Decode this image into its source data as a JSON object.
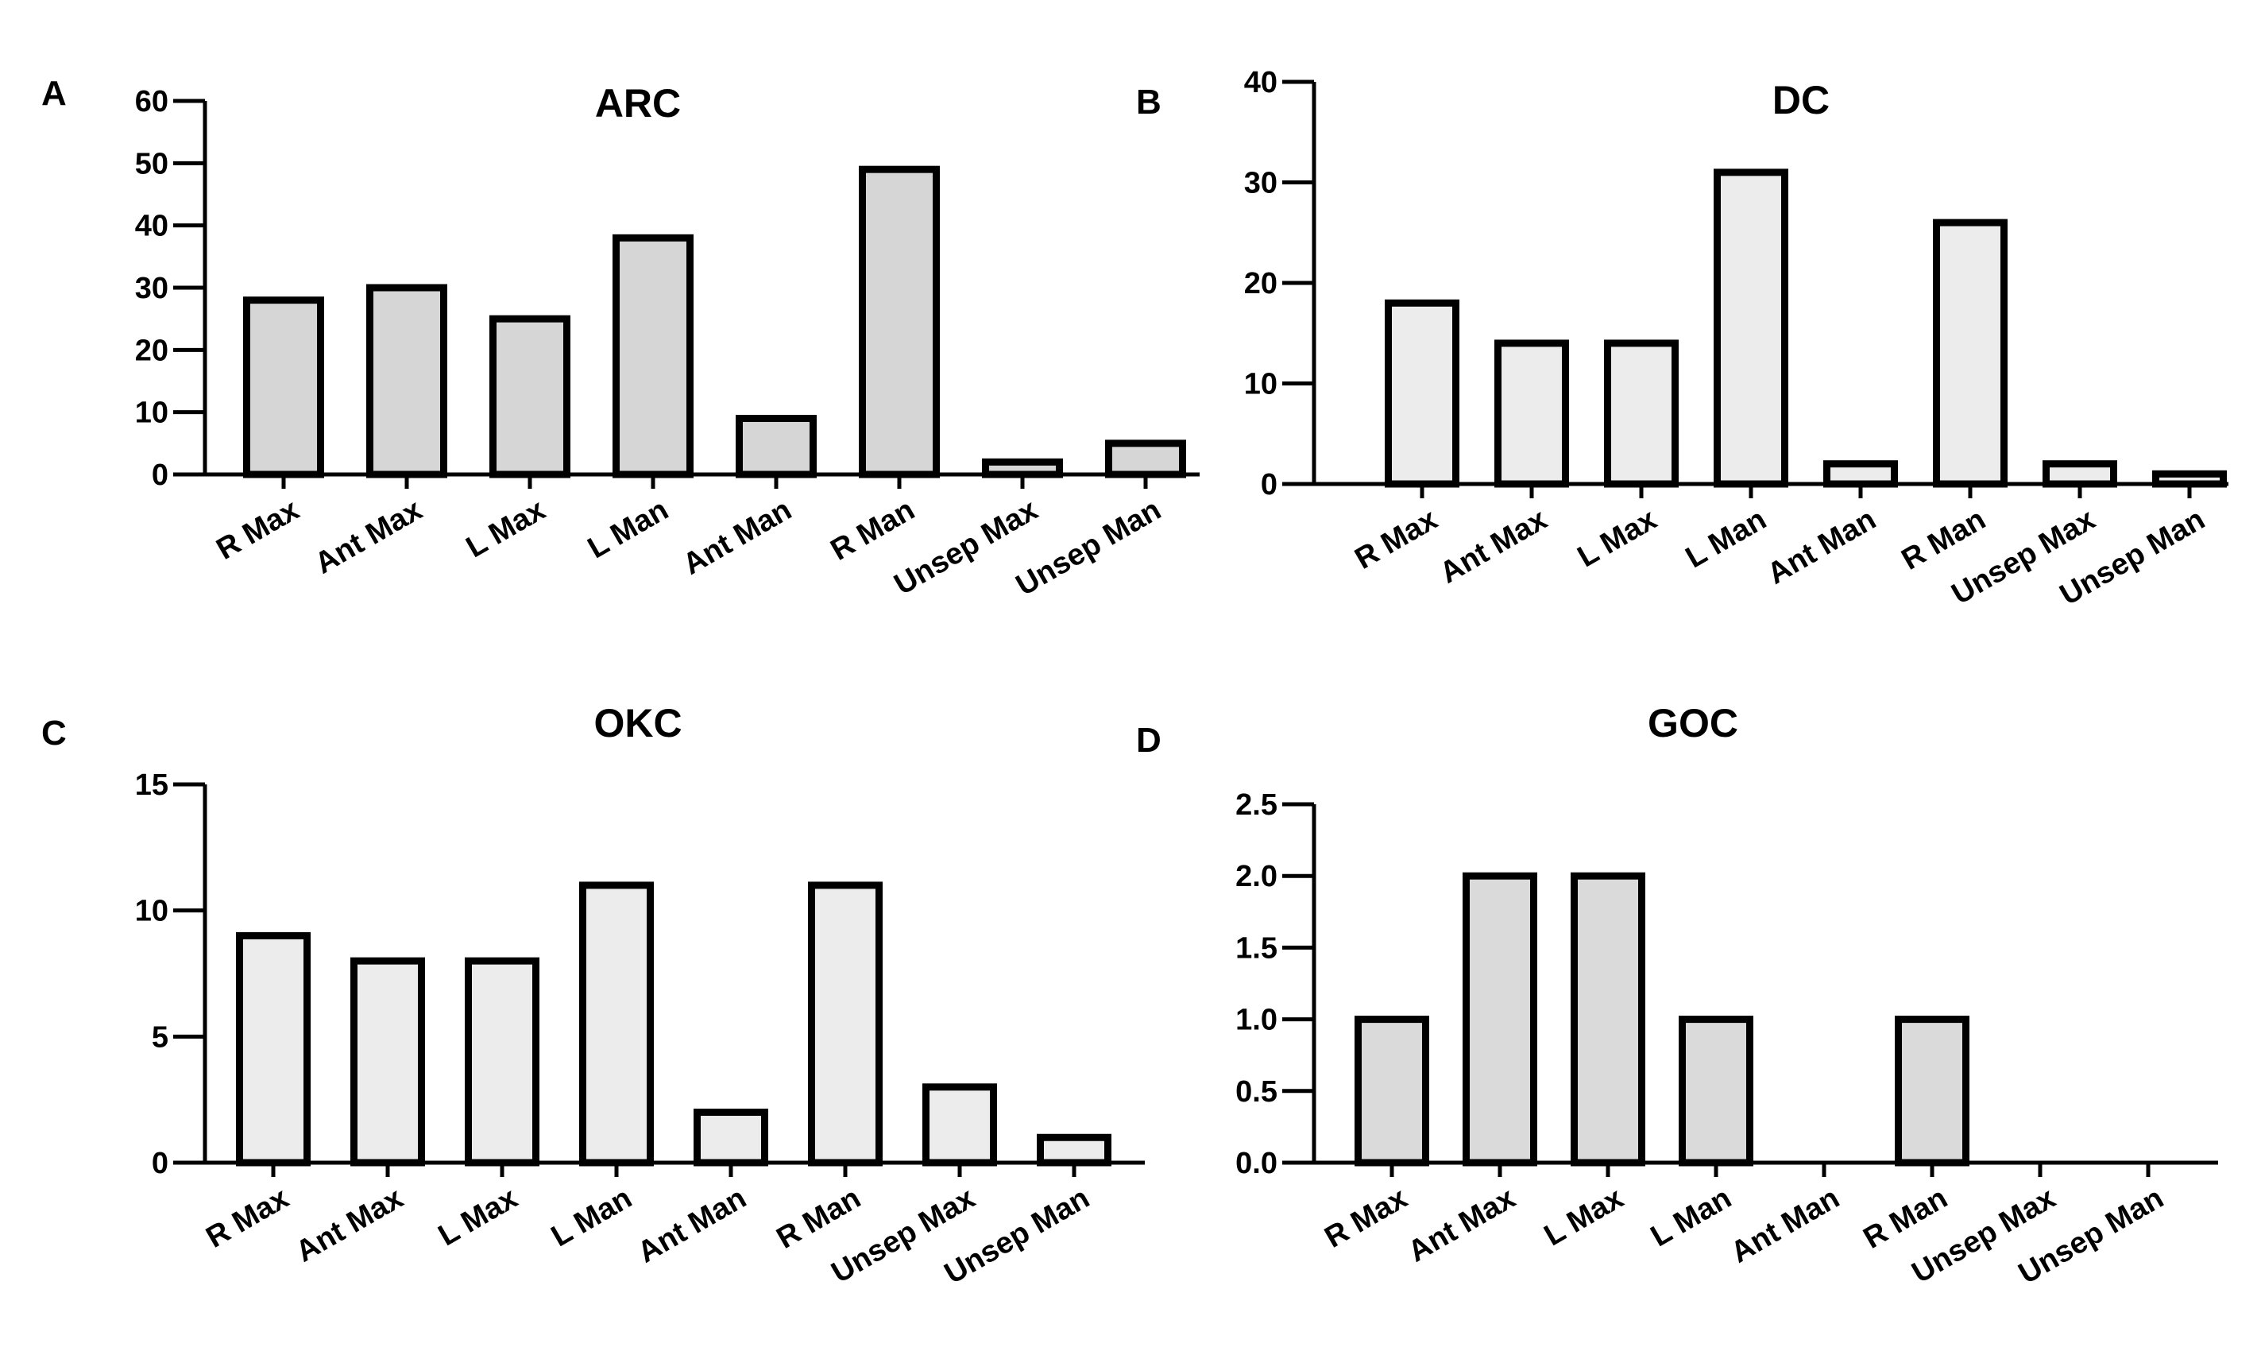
{
  "figure": {
    "panels": [
      {
        "letter": "A"
      },
      {
        "letter": "B"
      },
      {
        "letter": "C"
      },
      {
        "letter": "D"
      }
    ]
  },
  "chart_data": [
    {
      "type": "bar",
      "title": "ARC",
      "categories": [
        "R Max",
        "Ant Max",
        "L Max",
        "L Man",
        "Ant Man",
        "R Man",
        "Unsep Max",
        "Unsep Man"
      ],
      "values": [
        28,
        30,
        25,
        38,
        9,
        49,
        2,
        5
      ],
      "yticks": [
        0,
        10,
        20,
        30,
        40,
        50,
        60
      ],
      "ytick_labels": [
        "0",
        "10",
        "20",
        "30",
        "40",
        "50",
        "60"
      ],
      "ylim": [
        0,
        60
      ],
      "xlabel": "",
      "ylabel": "",
      "bar_color": "#d6d6d6",
      "grid": false
    },
    {
      "type": "bar",
      "title": "DC",
      "categories": [
        "R Max",
        "Ant Max",
        "L Max",
        "L Man",
        "Ant Man",
        "R Man",
        "Unsep Max",
        "Unsep Man"
      ],
      "values": [
        18,
        14,
        14,
        31,
        2,
        26,
        2,
        1
      ],
      "yticks": [
        0,
        10,
        20,
        30,
        40
      ],
      "ytick_labels": [
        "0",
        "10",
        "20",
        "30",
        "40"
      ],
      "ylim": [
        0,
        40
      ],
      "xlabel": "",
      "ylabel": "",
      "bar_color": "#ececec",
      "grid": false
    },
    {
      "type": "bar",
      "title": "OKC",
      "categories": [
        "R Max",
        "Ant Max",
        "L Max",
        "L Man",
        "Ant Man",
        "R Man",
        "Unsep Max",
        "Unsep Man"
      ],
      "values": [
        9,
        8,
        8,
        11,
        2,
        11,
        3,
        1
      ],
      "yticks": [
        0,
        5,
        10,
        15
      ],
      "ytick_labels": [
        "0",
        "5",
        "10",
        "15"
      ],
      "ylim": [
        0,
        15
      ],
      "xlabel": "",
      "ylabel": "",
      "bar_color": "#ececec",
      "grid": false
    },
    {
      "type": "bar",
      "title": "GOC",
      "categories": [
        "R Max",
        "Ant Max",
        "L Max",
        "L Man",
        "Ant Man",
        "R Man",
        "Unsep Max",
        "Unsep Man"
      ],
      "values": [
        1,
        2,
        2,
        1,
        0,
        1,
        0,
        0
      ],
      "yticks": [
        0,
        0.5,
        1,
        1.5,
        2,
        2.5
      ],
      "ytick_labels": [
        "0.0",
        "0.5",
        "1.0",
        "1.5",
        "2.0",
        "2.5"
      ],
      "ylim": [
        0,
        2.5
      ],
      "xlabel": "",
      "ylabel": "",
      "bar_color": "#dadada",
      "grid": false
    }
  ]
}
